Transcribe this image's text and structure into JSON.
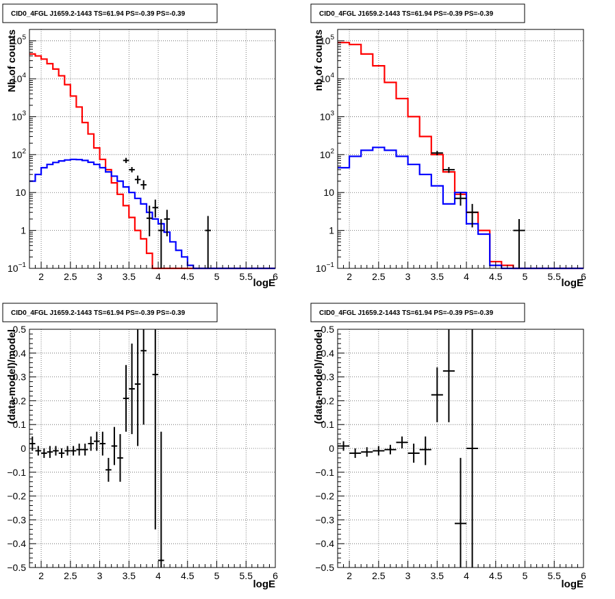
{
  "chart_data": [
    {
      "id": "top-left",
      "type": "histogram",
      "title": "CID0_4FGL J1659.2-1443 TS=61.94 PS=-0.39 PS=-0.39",
      "xlabel": "logE",
      "ylabel": "Nb of counts",
      "xlim": [
        1.8,
        6.0
      ],
      "ylim": [
        0.1,
        200000
      ],
      "yscale": "log",
      "grid": true,
      "x_ticks": [
        "2",
        "2.5",
        "3",
        "3.5",
        "4",
        "4.5",
        "5",
        "5.5",
        "6"
      ],
      "y_ticks": [
        {
          "v": 0.1,
          "base": "10",
          "exp": "−1"
        },
        {
          "v": 1,
          "base": "1",
          "exp": ""
        },
        {
          "v": 10,
          "base": "10",
          "exp": ""
        },
        {
          "v": 100,
          "base": "10",
          "exp": "2"
        },
        {
          "v": 1000,
          "base": "10",
          "exp": "3"
        },
        {
          "v": 10000,
          "base": "10",
          "exp": "4"
        },
        {
          "v": 100000,
          "base": "10",
          "exp": "5"
        }
      ],
      "bin_edges": [
        1.8,
        1.9,
        2.0,
        2.1,
        2.2,
        2.3,
        2.4,
        2.5,
        2.6,
        2.7,
        2.8,
        2.9,
        3.0,
        3.1,
        3.2,
        3.3,
        3.4,
        3.5,
        3.6,
        3.7,
        3.8,
        3.9,
        4.0,
        4.1,
        4.2,
        4.3,
        4.4,
        4.5,
        4.6,
        4.7,
        4.8,
        4.9,
        5.0,
        5.1,
        5.2,
        5.3,
        5.4,
        5.5,
        5.6,
        5.7,
        5.8,
        5.9,
        6.0
      ],
      "series": [
        {
          "color": "#ff0000",
          "values": [
            45000,
            40000,
            33000,
            25000,
            18000,
            12000,
            7000,
            3500,
            1800,
            700,
            350,
            150,
            75,
            40,
            18,
            9,
            4.5,
            2.2,
            1.0,
            0.6,
            0.25,
            0.1,
            0.1,
            0.1,
            0.1,
            0.1,
            0.1,
            0.1,
            0.1,
            0.1,
            0.1,
            0.1,
            0.1,
            0.1,
            0.1,
            0.1,
            0.1,
            0.1,
            0.1,
            0.1,
            0.1,
            0.1
          ]
        },
        {
          "color": "#0000ff",
          "values": [
            20,
            30,
            45,
            55,
            62,
            68,
            72,
            75,
            74,
            70,
            63,
            55,
            45,
            35,
            27,
            20,
            14,
            10,
            7.0,
            5.0,
            3.0,
            2.0,
            1.5,
            0.9,
            0.5,
            0.3,
            0.2,
            0.12,
            0.1,
            0.1,
            0.1,
            0.1,
            0.1,
            0.1,
            0.1,
            0.1,
            0.1,
            0.1,
            0.1,
            0.1,
            0.1,
            0.1
          ]
        }
      ],
      "points": [
        {
          "x": 3.45,
          "y": 70,
          "xerr": 0.05,
          "ylo": 60,
          "yhi": 82
        },
        {
          "x": 3.55,
          "y": 40,
          "xerr": 0.05,
          "ylo": 34,
          "yhi": 47
        },
        {
          "x": 3.65,
          "y": 22,
          "xerr": 0.05,
          "ylo": 17,
          "yhi": 28
        },
        {
          "x": 3.75,
          "y": 16,
          "xerr": 0.05,
          "ylo": 12,
          "yhi": 21
        },
        {
          "x": 3.85,
          "y": 2.1,
          "xerr": 0.05,
          "ylo": 0.7,
          "yhi": 4.5
        },
        {
          "x": 3.95,
          "y": 4,
          "xerr": 0.05,
          "ylo": 2.2,
          "yhi": 6.5
        },
        {
          "x": 4.05,
          "y": 1,
          "xerr": 0.05,
          "ylo": 0.1,
          "yhi": 2.0
        },
        {
          "x": 4.15,
          "y": 2,
          "xerr": 0.05,
          "ylo": 0.7,
          "yhi": 3.5
        },
        {
          "x": 4.85,
          "y": 1,
          "xerr": 0.05,
          "ylo": 0.1,
          "yhi": 2.4
        }
      ]
    },
    {
      "id": "top-right",
      "type": "histogram",
      "title": "CID0_4FGL J1659.2-1443 TS=61.94 PS=-0.39 PS=-0.39",
      "xlabel": "logE",
      "ylabel": "nb of counts",
      "xlim": [
        1.8,
        6.0
      ],
      "ylim": [
        0.1,
        200000
      ],
      "yscale": "log",
      "grid": true,
      "x_ticks": [
        "2",
        "2.5",
        "3",
        "3.5",
        "4",
        "4.5",
        "5",
        "5.5",
        "6"
      ],
      "y_ticks": [
        {
          "v": 0.1,
          "base": "10",
          "exp": "−1"
        },
        {
          "v": 1,
          "base": "1",
          "exp": ""
        },
        {
          "v": 10,
          "base": "10",
          "exp": ""
        },
        {
          "v": 100,
          "base": "10",
          "exp": "2"
        },
        {
          "v": 1000,
          "base": "10",
          "exp": "3"
        },
        {
          "v": 10000,
          "base": "10",
          "exp": "4"
        },
        {
          "v": 100000,
          "base": "10",
          "exp": "5"
        }
      ],
      "bin_edges": [
        1.8,
        2.0,
        2.2,
        2.4,
        2.6,
        2.8,
        3.0,
        3.2,
        3.4,
        3.6,
        3.8,
        4.0,
        4.2,
        4.4,
        4.6,
        4.8,
        5.0,
        5.2,
        5.4,
        5.6,
        5.8,
        6.0
      ],
      "series": [
        {
          "color": "#ff0000",
          "values": [
            90000,
            80000,
            45000,
            22000,
            8000,
            3000,
            1000,
            300,
            100,
            35,
            9,
            3,
            1,
            0.15,
            0.12,
            0.1,
            0.1,
            0.1,
            0.1,
            0.1,
            0.1
          ]
        },
        {
          "color": "#0000ff",
          "values": [
            45,
            90,
            130,
            155,
            130,
            90,
            55,
            30,
            15,
            5,
            10,
            1.5,
            0.8,
            0.12,
            0.1,
            0.1,
            0.1,
            0.1,
            0.1,
            0.1,
            0.1
          ]
        }
      ],
      "points": [
        {
          "x": 3.5,
          "y": 110,
          "xerr": 0.1,
          "ylo": 95,
          "yhi": 125
        },
        {
          "x": 3.7,
          "y": 40,
          "xerr": 0.1,
          "ylo": 33,
          "yhi": 47
        },
        {
          "x": 3.9,
          "y": 7,
          "xerr": 0.1,
          "ylo": 4.5,
          "yhi": 10
        },
        {
          "x": 4.1,
          "y": 3,
          "xerr": 0.1,
          "ylo": 1.2,
          "yhi": 5
        },
        {
          "x": 4.9,
          "y": 1,
          "xerr": 0.1,
          "ylo": 0.1,
          "yhi": 2
        }
      ]
    },
    {
      "id": "bottom-left",
      "type": "scatter",
      "title": "CID0_4FGL J1659.2-1443 TS=61.94 PS=-0.39 PS=-0.39",
      "xlabel": "logE",
      "ylabel": "(data-model)/model",
      "xlim": [
        1.8,
        6.0
      ],
      "ylim": [
        -0.5,
        0.5
      ],
      "yscale": "linear",
      "grid": true,
      "x_ticks": [
        "2",
        "2.5",
        "3",
        "3.5",
        "4",
        "4.5",
        "5",
        "5.5",
        "6"
      ],
      "y_ticks": [
        "−0.5",
        "−0.4",
        "−0.3",
        "−0.2",
        "−0.1",
        "0",
        "0.1",
        "0.2",
        "0.3",
        "0.4",
        "0.5"
      ],
      "points": [
        {
          "x": 1.85,
          "y": 0.02,
          "xerr": 0.05,
          "ylo": -0.01,
          "yhi": 0.05
        },
        {
          "x": 1.95,
          "y": -0.01,
          "xerr": 0.05,
          "ylo": -0.03,
          "yhi": 0.01
        },
        {
          "x": 2.05,
          "y": -0.02,
          "xerr": 0.05,
          "ylo": -0.04,
          "yhi": 0.0
        },
        {
          "x": 2.15,
          "y": -0.015,
          "xerr": 0.05,
          "ylo": -0.04,
          "yhi": 0.01
        },
        {
          "x": 2.25,
          "y": -0.01,
          "xerr": 0.05,
          "ylo": -0.03,
          "yhi": 0.01
        },
        {
          "x": 2.35,
          "y": -0.02,
          "xerr": 0.05,
          "ylo": -0.04,
          "yhi": 0.0
        },
        {
          "x": 2.45,
          "y": -0.01,
          "xerr": 0.05,
          "ylo": -0.03,
          "yhi": 0.01
        },
        {
          "x": 2.55,
          "y": -0.01,
          "xerr": 0.05,
          "ylo": -0.03,
          "yhi": 0.01
        },
        {
          "x": 2.65,
          "y": -0.005,
          "xerr": 0.05,
          "ylo": -0.03,
          "yhi": 0.02
        },
        {
          "x": 2.75,
          "y": -0.005,
          "xerr": 0.05,
          "ylo": -0.03,
          "yhi": 0.02
        },
        {
          "x": 2.85,
          "y": 0.02,
          "xerr": 0.05,
          "ylo": -0.01,
          "yhi": 0.05
        },
        {
          "x": 2.95,
          "y": 0.03,
          "xerr": 0.05,
          "ylo": -0.01,
          "yhi": 0.07
        },
        {
          "x": 3.05,
          "y": 0.02,
          "xerr": 0.05,
          "ylo": -0.03,
          "yhi": 0.07
        },
        {
          "x": 3.15,
          "y": -0.09,
          "xerr": 0.05,
          "ylo": -0.14,
          "yhi": -0.04
        },
        {
          "x": 3.25,
          "y": 0.01,
          "xerr": 0.05,
          "ylo": -0.07,
          "yhi": 0.09
        },
        {
          "x": 3.35,
          "y": -0.04,
          "xerr": 0.05,
          "ylo": -0.14,
          "yhi": 0.06
        },
        {
          "x": 3.45,
          "y": 0.21,
          "xerr": 0.05,
          "ylo": 0.07,
          "yhi": 0.35
        },
        {
          "x": 3.55,
          "y": 0.25,
          "xerr": 0.05,
          "ylo": 0.06,
          "yhi": 0.44
        },
        {
          "x": 3.65,
          "y": 0.27,
          "xerr": 0.05,
          "ylo": 0.01,
          "yhi": 0.5
        },
        {
          "x": 3.75,
          "y": 0.41,
          "xerr": 0.05,
          "ylo": 0.1,
          "yhi": 0.5
        },
        {
          "x": 3.95,
          "y": 0.31,
          "xerr": 0.05,
          "ylo": -0.34,
          "yhi": 0.5
        },
        {
          "x": 4.05,
          "y": -0.47,
          "xerr": 0.05,
          "ylo": -0.5,
          "yhi": 0.07
        }
      ]
    },
    {
      "id": "bottom-right",
      "type": "scatter",
      "title": "CID0_4FGL J1659.2-1443 TS=61.94 PS=-0.39 PS=-0.39",
      "xlabel": "logE",
      "ylabel": "(data-model)/model",
      "xlim": [
        1.8,
        6.0
      ],
      "ylim": [
        -0.5,
        0.5
      ],
      "yscale": "linear",
      "grid": true,
      "x_ticks": [
        "2",
        "2.5",
        "3",
        "3.5",
        "4",
        "4.5",
        "5",
        "5.5",
        "6"
      ],
      "y_ticks": [
        "−0.5",
        "−0.4",
        "−0.3",
        "−0.2",
        "−0.1",
        "0",
        "0.1",
        "0.2",
        "0.3",
        "0.4",
        "0.5"
      ],
      "points": [
        {
          "x": 1.9,
          "y": 0.01,
          "xerr": 0.1,
          "ylo": -0.01,
          "yhi": 0.03
        },
        {
          "x": 2.1,
          "y": -0.02,
          "xerr": 0.1,
          "ylo": -0.04,
          "yhi": 0.0
        },
        {
          "x": 2.3,
          "y": -0.015,
          "xerr": 0.1,
          "ylo": -0.035,
          "yhi": 0.005
        },
        {
          "x": 2.5,
          "y": -0.01,
          "xerr": 0.1,
          "ylo": -0.03,
          "yhi": 0.01
        },
        {
          "x": 2.7,
          "y": -0.005,
          "xerr": 0.1,
          "ylo": -0.025,
          "yhi": 0.015
        },
        {
          "x": 2.9,
          "y": 0.025,
          "xerr": 0.1,
          "ylo": 0.0,
          "yhi": 0.05
        },
        {
          "x": 3.1,
          "y": -0.02,
          "xerr": 0.1,
          "ylo": -0.06,
          "yhi": 0.02
        },
        {
          "x": 3.3,
          "y": -0.005,
          "xerr": 0.1,
          "ylo": -0.07,
          "yhi": 0.05
        },
        {
          "x": 3.5,
          "y": 0.225,
          "xerr": 0.1,
          "ylo": 0.11,
          "yhi": 0.34
        },
        {
          "x": 3.7,
          "y": 0.325,
          "xerr": 0.1,
          "ylo": 0.11,
          "yhi": 0.5
        },
        {
          "x": 3.9,
          "y": -0.315,
          "xerr": 0.1,
          "ylo": -0.5,
          "yhi": -0.04
        },
        {
          "x": 4.1,
          "y": 0.0,
          "xerr": 0.1,
          "ylo": -0.5,
          "yhi": 0.5
        }
      ]
    }
  ]
}
